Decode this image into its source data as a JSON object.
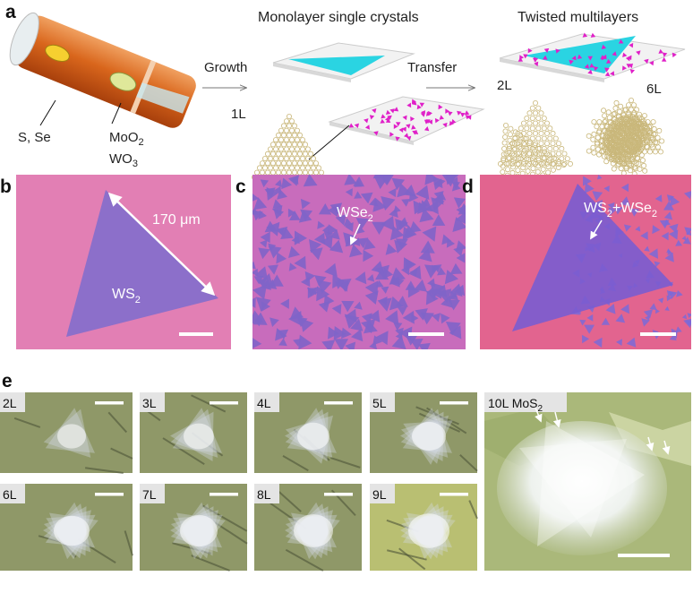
{
  "panel_a": {
    "label": "a",
    "heading_monolayer": "Monolayer single crystals",
    "heading_twisted": "Twisted multilayers",
    "growth": "Growth",
    "transfer": "Transfer",
    "precursor_sulfur": "S, Se",
    "precursor_mo": {
      "base": "MoO",
      "sub": "2"
    },
    "precursor_w": {
      "base": "WO",
      "sub": "3"
    },
    "layer_1": "1L",
    "layer_2": "2L",
    "layer_6": "6L"
  },
  "panel_b": {
    "label": "b",
    "scale_note": "170 μm",
    "material": {
      "base": "WS",
      "sub": "2"
    }
  },
  "panel_c": {
    "label": "c",
    "material": {
      "base": "WSe",
      "sub": "2"
    }
  },
  "panel_d": {
    "label": "d",
    "material": {
      "part_1": "WS",
      "sub_1": "2",
      "part_2": "+WSe",
      "sub_2": "2"
    }
  },
  "panel_e": {
    "label": "e",
    "tiles": [
      "2L",
      "3L",
      "4L",
      "5L",
      "6L",
      "7L",
      "8L",
      "9L"
    ],
    "large_tile": {
      "base": "10L MoS",
      "sub": "2"
    }
  }
}
